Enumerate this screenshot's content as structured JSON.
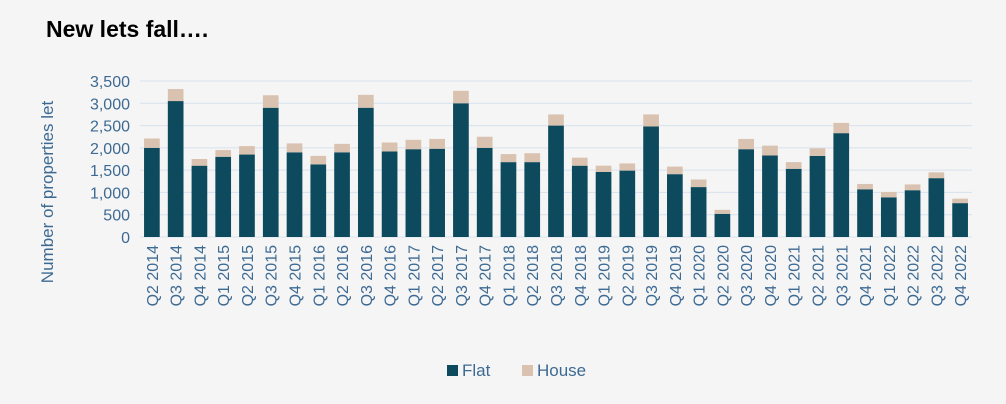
{
  "title": "New lets fall….",
  "chart_data": {
    "type": "bar",
    "stacked": true,
    "categories": [
      "Q2 2014",
      "Q3 2014",
      "Q4 2014",
      "Q1 2015",
      "Q2 2015",
      "Q3 2015",
      "Q4 2015",
      "Q1 2016",
      "Q2 2016",
      "Q3 2016",
      "Q4 2016",
      "Q1 2017",
      "Q2 2017",
      "Q3 2017",
      "Q4 2017",
      "Q1 2018",
      "Q2 2018",
      "Q3 2018",
      "Q4 2018",
      "Q1 2019",
      "Q2 2019",
      "Q3 2019",
      "Q4 2019",
      "Q1 2020",
      "Q2 2020",
      "Q3 2020",
      "Q4 2020",
      "Q1 2021",
      "Q2 2021",
      "Q3 2021",
      "Q4 2021",
      "Q1 2022",
      "Q2 2022",
      "Q3 2022",
      "Q4 2022"
    ],
    "series": [
      {
        "name": "Flat",
        "color": "#0d4a5e",
        "values": [
          2000,
          3050,
          1600,
          1800,
          1850,
          2900,
          1900,
          1630,
          1900,
          2900,
          1920,
          1970,
          1980,
          3000,
          2000,
          1680,
          1680,
          2500,
          1600,
          1460,
          1490,
          2480,
          1410,
          1120,
          520,
          1970,
          1830,
          1530,
          1820,
          2330,
          1070,
          890,
          1050,
          1320,
          760
        ]
      },
      {
        "name": "House",
        "color": "#d9c2b0",
        "values": [
          210,
          270,
          150,
          150,
          190,
          280,
          200,
          190,
          190,
          290,
          200,
          210,
          220,
          280,
          250,
          180,
          200,
          250,
          180,
          140,
          160,
          270,
          170,
          170,
          90,
          230,
          220,
          150,
          170,
          230,
          120,
          120,
          130,
          130,
          100
        ]
      }
    ],
    "ylabel": "Number of properties let",
    "ylim": [
      0,
      3500
    ],
    "yticks": [
      "0",
      "500",
      "1,000",
      "1,500",
      "2,000",
      "2,500",
      "3,000",
      "3,500"
    ],
    "grid": true,
    "legend": "bottom-center"
  }
}
